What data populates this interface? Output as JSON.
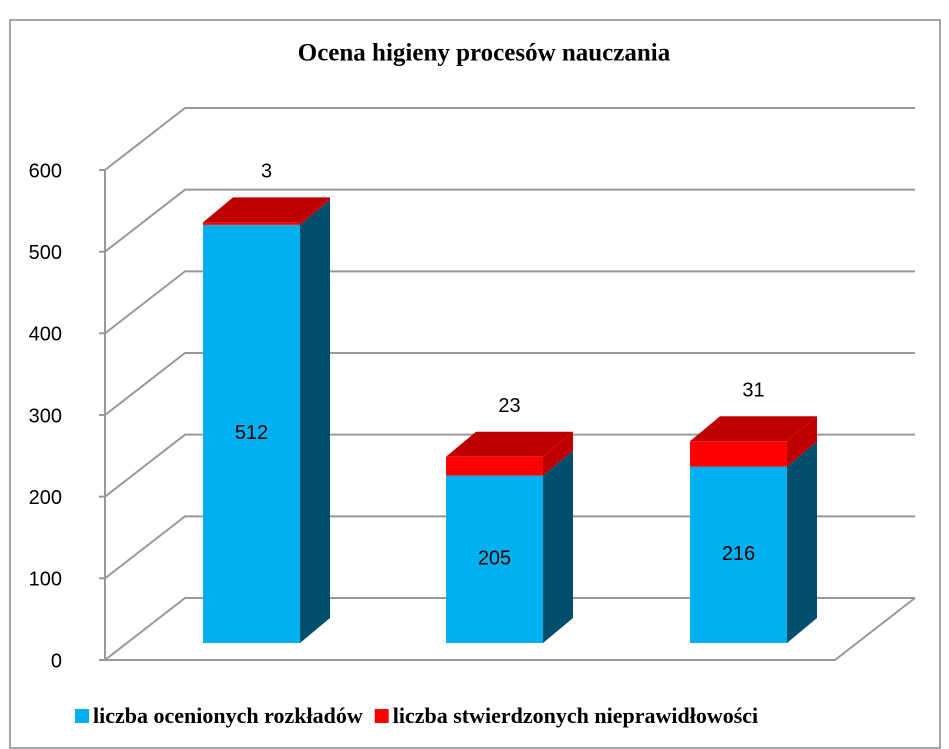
{
  "chart_data": {
    "type": "bar3d_stacked",
    "title": "Ocena higieny procesów nauczania",
    "categories": [
      null,
      null,
      null
    ],
    "series": [
      {
        "name": "liczba ocenionych rozkładów",
        "color": "#00b0f0",
        "values": [
          512,
          205,
          216
        ]
      },
      {
        "name": "liczba stwierdzonych nieprawidłowości",
        "color": "#ff0000",
        "values": [
          3,
          23,
          31
        ]
      }
    ],
    "ylim": [
      0,
      600
    ],
    "yticks": [
      0,
      100,
      200,
      300,
      400,
      500,
      600
    ],
    "grid": true,
    "legend": "bottom"
  }
}
